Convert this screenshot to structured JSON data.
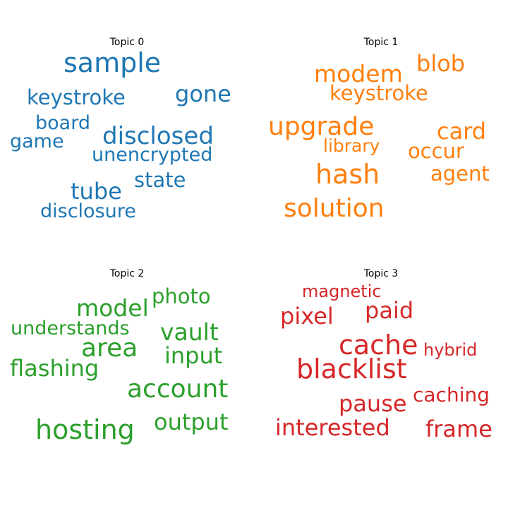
{
  "chart_data": [
    {
      "type": "wordcloud",
      "title": "Topic 0",
      "color": "#1f77b4",
      "words": [
        {
          "text": "sample",
          "weight": 1.0
        },
        {
          "text": "gone",
          "weight": 0.84
        },
        {
          "text": "disclosed",
          "weight": 0.88
        },
        {
          "text": "tube",
          "weight": 0.84
        },
        {
          "text": "keystroke",
          "weight": 0.76
        },
        {
          "text": "unencrypted",
          "weight": 0.74
        },
        {
          "text": "state",
          "weight": 0.74
        },
        {
          "text": "game",
          "weight": 0.74
        },
        {
          "text": "board",
          "weight": 0.74
        },
        {
          "text": "disclosure",
          "weight": 0.74
        }
      ]
    },
    {
      "type": "wordcloud",
      "title": "Topic 1",
      "color": "#ff7f0e",
      "words": [
        {
          "text": "upgrade",
          "weight": 1.0
        },
        {
          "text": "hash",
          "weight": 1.0
        },
        {
          "text": "solution",
          "weight": 0.96
        },
        {
          "text": "modem",
          "weight": 0.88
        },
        {
          "text": "card",
          "weight": 0.86
        },
        {
          "text": "blob",
          "weight": 0.86
        },
        {
          "text": "keystroke",
          "weight": 0.76
        },
        {
          "text": "occur",
          "weight": 0.76
        },
        {
          "text": "agent",
          "weight": 0.76
        },
        {
          "text": "library",
          "weight": 0.7
        }
      ]
    },
    {
      "type": "wordcloud",
      "title": "Topic 2",
      "color": "#2ca02c",
      "words": [
        {
          "text": "hosting",
          "weight": 1.0
        },
        {
          "text": "account",
          "weight": 0.96
        },
        {
          "text": "area",
          "weight": 0.96
        },
        {
          "text": "model",
          "weight": 0.9
        },
        {
          "text": "vault",
          "weight": 0.9
        },
        {
          "text": "output",
          "weight": 0.86
        },
        {
          "text": "flashing",
          "weight": 0.86
        },
        {
          "text": "input",
          "weight": 0.86
        },
        {
          "text": "photo",
          "weight": 0.8
        },
        {
          "text": "understands",
          "weight": 0.76
        }
      ]
    },
    {
      "type": "wordcloud",
      "title": "Topic 3",
      "color": "#d62728",
      "words": [
        {
          "text": "blacklist",
          "weight": 1.0
        },
        {
          "text": "cache",
          "weight": 1.0
        },
        {
          "text": "interested",
          "weight": 0.88
        },
        {
          "text": "frame",
          "weight": 0.88
        },
        {
          "text": "pixel",
          "weight": 0.86
        },
        {
          "text": "paid",
          "weight": 0.86
        },
        {
          "text": "pause",
          "weight": 0.84
        },
        {
          "text": "caching",
          "weight": 0.74
        },
        {
          "text": "hybrid",
          "weight": 0.7
        },
        {
          "text": "magnetic",
          "weight": 0.66
        }
      ]
    }
  ]
}
